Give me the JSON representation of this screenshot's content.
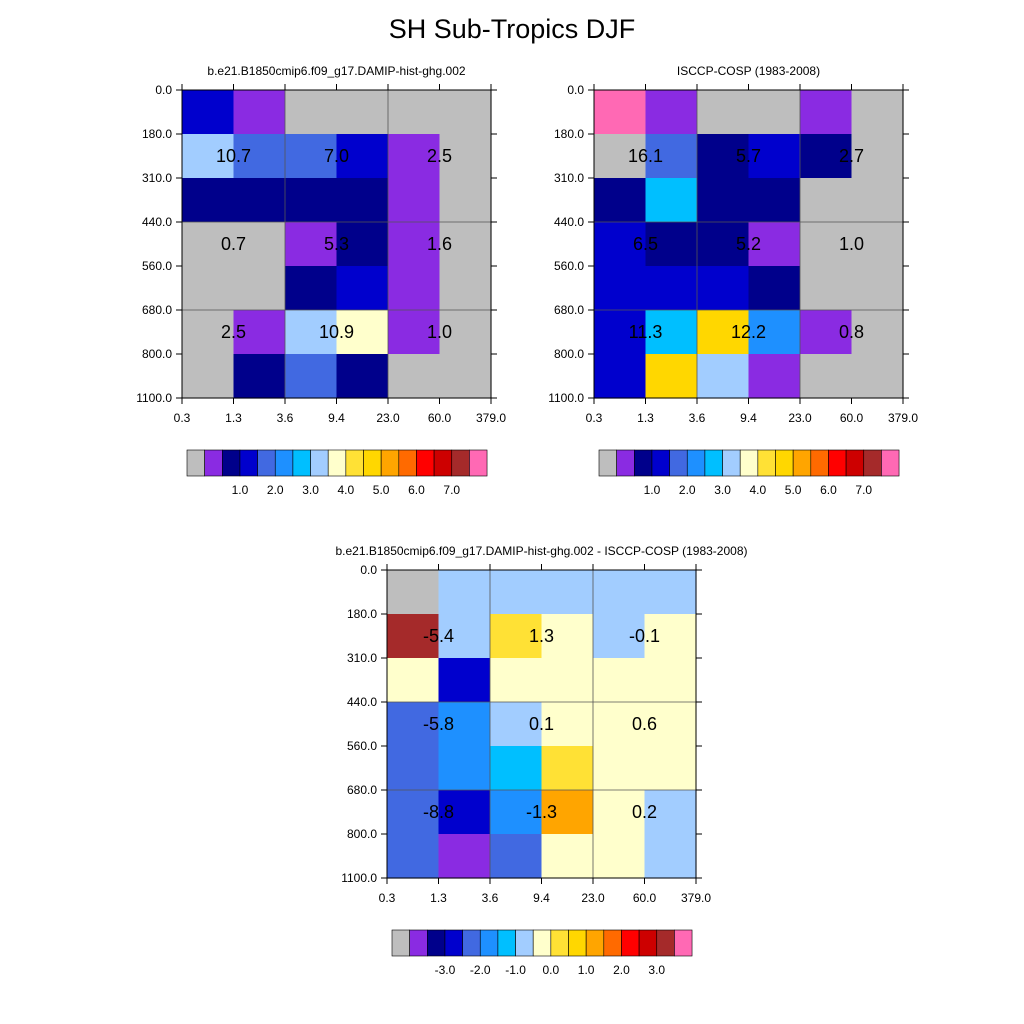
{
  "title": "SH Sub-Tropics DJF",
  "palettes": {
    "abs": [
      "#bebebe",
      "#8a2be2",
      "#00008b",
      "#0000cd",
      "#4169e1",
      "#1e90ff",
      "#00bfff",
      "#a2cdff",
      "#ffffcc",
      "#ffe135",
      "#ffd700",
      "#ffa500",
      "#ff6a00",
      "#ff0000",
      "#cd0000",
      "#a52a2a",
      "#ff69b4"
    ],
    "diff": [
      "#bebebe",
      "#8a2be2",
      "#00008b",
      "#0000cd",
      "#4169e1",
      "#1e90ff",
      "#00bfff",
      "#a2cdff",
      "#ffffcc",
      "#ffe135",
      "#ffd700",
      "#ffa500",
      "#ff6a00",
      "#ff0000",
      "#cd0000",
      "#a52a2a",
      "#ff69b4"
    ]
  },
  "chart_data": [
    {
      "id": "model",
      "type": "heatmap",
      "title": "b.e21.B1850cmip6.f09_g17.DAMIP-hist-ghg.002",
      "x_ticks": [
        "0.3",
        "1.3",
        "3.6",
        "9.4",
        "23.0",
        "60.0",
        "379.0"
      ],
      "y_ticks": [
        "0.0",
        "180.0",
        "310.0",
        "440.0",
        "560.0",
        "680.0",
        "800.0",
        "1100.0"
      ],
      "cell_colors": [
        [
          3,
          1,
          0,
          0,
          0,
          0
        ],
        [
          7,
          4,
          4,
          3,
          1,
          0
        ],
        [
          2,
          2,
          2,
          2,
          1,
          0
        ],
        [
          0,
          0,
          1,
          2,
          1,
          0
        ],
        [
          0,
          0,
          2,
          3,
          1,
          0
        ],
        [
          0,
          1,
          7,
          8,
          1,
          0
        ],
        [
          0,
          2,
          4,
          2,
          0,
          0
        ]
      ],
      "labels": [
        {
          "col": 0,
          "row": 1,
          "text": "10.7"
        },
        {
          "col": 1,
          "row": 1,
          "text": "7.0"
        },
        {
          "col": 2,
          "row": 1,
          "text": "2.5"
        },
        {
          "col": 0,
          "row": 3,
          "text": "0.7"
        },
        {
          "col": 1,
          "row": 3,
          "text": "5.3"
        },
        {
          "col": 2,
          "row": 3,
          "text": "1.6"
        },
        {
          "col": 0,
          "row": 5,
          "text": "2.5"
        },
        {
          "col": 1,
          "row": 5,
          "text": "10.9"
        },
        {
          "col": 2,
          "row": 5,
          "text": "1.0"
        }
      ],
      "colorbar": {
        "palette": "abs",
        "labels": [
          "1.0",
          "2.0",
          "3.0",
          "4.0",
          "5.0",
          "6.0",
          "7.0"
        ]
      }
    },
    {
      "id": "obs",
      "type": "heatmap",
      "title": "ISCCP-COSP (1983-2008)",
      "x_ticks": [
        "0.3",
        "1.3",
        "3.6",
        "9.4",
        "23.0",
        "60.0",
        "379.0"
      ],
      "y_ticks": [
        "0.0",
        "180.0",
        "310.0",
        "440.0",
        "560.0",
        "680.0",
        "800.0",
        "1100.0"
      ],
      "cell_colors": [
        [
          16,
          1,
          0,
          0,
          1,
          0
        ],
        [
          0,
          4,
          2,
          3,
          2,
          0
        ],
        [
          2,
          6,
          2,
          2,
          0,
          0
        ],
        [
          3,
          2,
          2,
          1,
          0,
          0
        ],
        [
          3,
          3,
          3,
          2,
          0,
          0
        ],
        [
          3,
          6,
          10,
          5,
          1,
          0
        ],
        [
          3,
          10,
          7,
          1,
          0,
          0
        ]
      ],
      "labels": [
        {
          "col": 0,
          "row": 1,
          "text": "16.1"
        },
        {
          "col": 1,
          "row": 1,
          "text": "5.7"
        },
        {
          "col": 2,
          "row": 1,
          "text": "2.7"
        },
        {
          "col": 0,
          "row": 3,
          "text": "6.5"
        },
        {
          "col": 1,
          "row": 3,
          "text": "5.2"
        },
        {
          "col": 2,
          "row": 3,
          "text": "1.0"
        },
        {
          "col": 0,
          "row": 5,
          "text": "11.3"
        },
        {
          "col": 1,
          "row": 5,
          "text": "12.2"
        },
        {
          "col": 2,
          "row": 5,
          "text": "0.8"
        }
      ],
      "colorbar": {
        "palette": "abs",
        "labels": [
          "1.0",
          "2.0",
          "3.0",
          "4.0",
          "5.0",
          "6.0",
          "7.0"
        ]
      }
    },
    {
      "id": "diff",
      "type": "heatmap",
      "title": "b.e21.B1850cmip6.f09_g17.DAMIP-hist-ghg.002 - ISCCP-COSP (1983-2008)",
      "x_ticks": [
        "0.3",
        "1.3",
        "3.6",
        "9.4",
        "23.0",
        "60.0",
        "379.0"
      ],
      "y_ticks": [
        "0.0",
        "180.0",
        "310.0",
        "440.0",
        "560.0",
        "680.0",
        "800.0",
        "1100.0"
      ],
      "cell_colors": [
        [
          0,
          7,
          7,
          7,
          7,
          7
        ],
        [
          15,
          7,
          9,
          8,
          7,
          8
        ],
        [
          8,
          3,
          8,
          8,
          8,
          8
        ],
        [
          4,
          5,
          7,
          8,
          8,
          8
        ],
        [
          4,
          5,
          6,
          9,
          8,
          8
        ],
        [
          4,
          3,
          5,
          11,
          8,
          7
        ],
        [
          4,
          1,
          4,
          8,
          8,
          7
        ]
      ],
      "labels": [
        {
          "col": 0,
          "row": 1,
          "text": "-5.4"
        },
        {
          "col": 1,
          "row": 1,
          "text": "1.3"
        },
        {
          "col": 2,
          "row": 1,
          "text": "-0.1"
        },
        {
          "col": 0,
          "row": 3,
          "text": "-5.8"
        },
        {
          "col": 1,
          "row": 3,
          "text": "0.1"
        },
        {
          "col": 2,
          "row": 3,
          "text": "0.6"
        },
        {
          "col": 0,
          "row": 5,
          "text": "-8.8"
        },
        {
          "col": 1,
          "row": 5,
          "text": "-1.3"
        },
        {
          "col": 2,
          "row": 5,
          "text": "0.2"
        }
      ],
      "colorbar": {
        "palette": "diff",
        "labels": [
          "-3.0",
          "-2.0",
          "-1.0",
          "0.0",
          "1.0",
          "2.0",
          "3.0"
        ]
      }
    }
  ]
}
